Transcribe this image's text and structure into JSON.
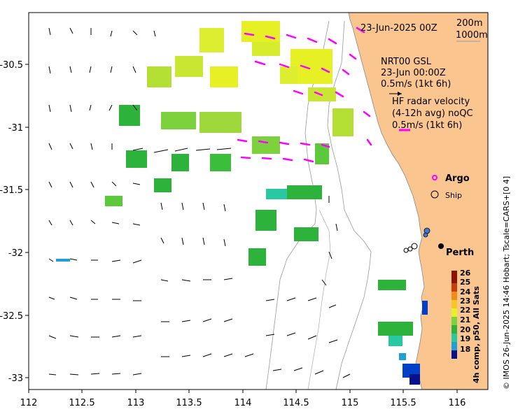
{
  "map": {
    "date_label": "23-Jun-2025 00Z",
    "depth_labels": [
      "200m",
      "1000m"
    ],
    "nrt_label": "NRT00 GSL",
    "nrt_time": "23-Jun 00:00Z",
    "nrt_scale": "0.5m/s (1kt 6h)",
    "hf_title": "HF radar velocity",
    "hf_sub": "(4-12h avg) noQC",
    "hf_scale": "0.5m/s (1kt 6h)",
    "argo_label": "Argo",
    "ship_label": "Ship",
    "city_label": "Perth",
    "colorbar_title": "4h comp, p50, All Sats",
    "credit": "© IMOS 26-Jun-2025 14:46 Hobart; Tscale=CARS+[0 4]",
    "colorbar_ticks": [
      "26",
      "25",
      "24",
      "23",
      "22",
      "21",
      "20",
      "19",
      "18"
    ],
    "x_ticks": [
      "112",
      "112.5",
      "113",
      "113.5",
      "114",
      "114.5",
      "115",
      "115.5",
      "116"
    ],
    "y_ticks": [
      "-30.5",
      "-31",
      "-31.5",
      "-32",
      "-32.5",
      "-33"
    ],
    "colors": {
      "land": "#FBC590",
      "hf_arrow": "#FF00FF",
      "argo": "#FF00FF",
      "scale": [
        "#08108C",
        "#0040C8",
        "#1EA0D6",
        "#28C8A0",
        "#2DB33C",
        "#7DD13C",
        "#E6F024",
        "#F5C828",
        "#F08C14",
        "#C83C0A",
        "#8C1400"
      ]
    }
  }
}
